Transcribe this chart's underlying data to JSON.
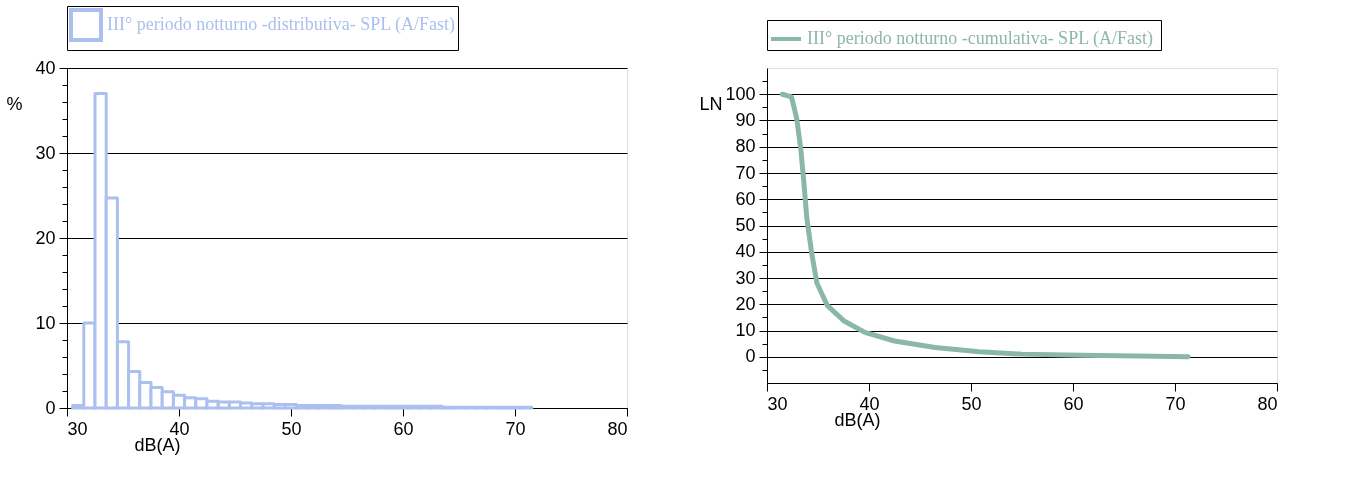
{
  "chart_data": [
    {
      "type": "histogram",
      "xlabel": "dB(A)",
      "ylabel": "%",
      "legend": "top",
      "bins": [
        30.5,
        31.5,
        32.5,
        33.5,
        34.5,
        35.5,
        36.5,
        37.5,
        38.5,
        39.5,
        40.5,
        41.5,
        42.5,
        43.5,
        44.5,
        45.5,
        46.5,
        47.5,
        48.5,
        49.5,
        50.5,
        51.5,
        52.5,
        53.5,
        54.5,
        55.5,
        56.5,
        57.5,
        58.5,
        59.5,
        60.5,
        61.5,
        62.5,
        63.5,
        64.5,
        65.5,
        66.5,
        67.5,
        68.5,
        69.5,
        70.5,
        71.5
      ],
      "series": [
        {
          "name": "III° periodo notturno -distributiva- SPL (A/Fast)",
          "color": "#abc0ee",
          "values": [
            0.3,
            10,
            37,
            24.7,
            7.8,
            4.3,
            3.0,
            2.4,
            1.9,
            1.5,
            1.2,
            1.1,
            0.8,
            0.7,
            0.7,
            0.6,
            0.5,
            0.5,
            0.4,
            0.4,
            0.3,
            0.3,
            0.3,
            0.3,
            0.2,
            0.2,
            0.2,
            0.2,
            0.2,
            0.2,
            0.2,
            0.2,
            0.2,
            0.1,
            0.1,
            0.1,
            0.1,
            0.1,
            0.1,
            0.1,
            0.1
          ]
        }
      ],
      "xlim": [
        30,
        80
      ],
      "xticks": [
        30,
        40,
        50,
        60,
        70,
        80
      ],
      "ylim": [
        0,
        40
      ],
      "yticks": [
        0,
        {
          "value": 2,
          "label": null
        },
        {
          "value": 4,
          "label": null
        },
        {
          "value": 6,
          "label": null
        },
        {
          "value": 8,
          "label": null
        },
        10,
        {
          "value": 12,
          "label": null
        },
        {
          "value": 14,
          "label": null
        },
        {
          "value": 16,
          "label": null
        },
        {
          "value": 18,
          "label": null
        },
        20,
        {
          "value": 22,
          "label": null
        },
        {
          "value": 24,
          "label": null
        },
        {
          "value": 26,
          "label": null
        },
        {
          "value": 28,
          "label": null
        },
        30,
        {
          "value": 32,
          "label": null
        },
        {
          "value": 34,
          "label": null
        },
        {
          "value": 36,
          "label": null
        },
        {
          "value": 38,
          "label": null
        },
        40
      ],
      "grid": "y"
    },
    {
      "type": "line",
      "xlabel": "dB(A)",
      "ylabel": "LN",
      "legend": "top",
      "marker": "none",
      "line_style": "solid",
      "series": [
        {
          "name": "III° periodo notturno -cumulativa-  SPL (A/Fast)",
          "color": "#8bb8a6",
          "x": [
            31.5,
            32.4,
            32.9,
            33.3,
            33.6,
            33.9,
            34.4,
            34.9,
            35.9,
            37.6,
            39.6,
            42.5,
            46.5,
            50.8,
            55.0,
            60.7,
            66.4,
            71.3
          ],
          "values": [
            100,
            99,
            91,
            79.6,
            67,
            53,
            39,
            28,
            19.6,
            13.5,
            9.3,
            6,
            3.5,
            1.9,
            1.0,
            0.6,
            0.3,
            0
          ]
        }
      ],
      "xlim": [
        30,
        80
      ],
      "xticks": [
        30,
        40,
        50,
        60,
        70,
        80
      ],
      "ylim": [
        -10,
        110
      ],
      "yticks": [
        {
          "value": -5,
          "label": null
        },
        0,
        {
          "value": 5,
          "label": null
        },
        10,
        {
          "value": 15,
          "label": null
        },
        20,
        {
          "value": 25,
          "label": null
        },
        30,
        {
          "value": 35,
          "label": null
        },
        40,
        {
          "value": 45,
          "label": null
        },
        50,
        {
          "value": 55,
          "label": null
        },
        60,
        {
          "value": 65,
          "label": null
        },
        70,
        {
          "value": 75,
          "label": null
        },
        80,
        {
          "value": 85,
          "label": null
        },
        90,
        {
          "value": 95,
          "label": null
        },
        100,
        {
          "value": 105,
          "label": null
        }
      ],
      "grid": "y"
    }
  ]
}
